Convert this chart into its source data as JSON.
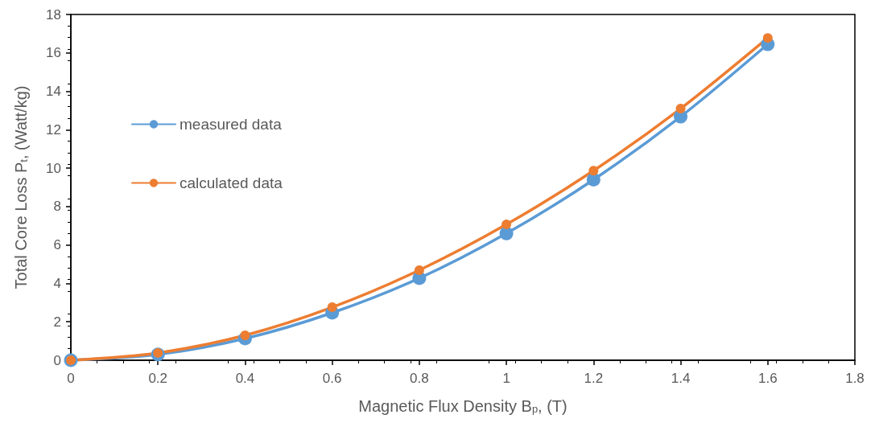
{
  "chart_data": {
    "type": "line",
    "xlabel": "Magnetic Flux Density B$_{p}$, (T)",
    "ylabel": "Total Core Loss P$_{t}$, (Watt/kg)",
    "x": [
      0,
      0.2,
      0.4,
      0.6,
      0.8,
      1.0,
      1.2,
      1.4,
      1.6
    ],
    "series": [
      {
        "name": "measured data",
        "color": "#5b9bd5",
        "values": [
          0,
          0.3,
          1.13,
          2.47,
          4.27,
          6.6,
          9.4,
          12.68,
          16.45
        ]
      },
      {
        "name": "calculated data",
        "color": "#ed7d31",
        "values": [
          0,
          0.38,
          1.3,
          2.76,
          4.69,
          7.07,
          9.87,
          13.1,
          16.78
        ]
      }
    ],
    "xlim": [
      0,
      1.8
    ],
    "xticks": [
      0,
      0.2,
      0.4,
      0.6,
      0.8,
      1,
      1.2,
      1.4,
      1.6,
      1.8
    ],
    "ylim": [
      0,
      18
    ],
    "yticks": [
      0,
      2,
      4,
      6,
      8,
      10,
      12,
      14,
      16,
      18
    ],
    "grid": false,
    "legend": "top left",
    "marker": "circle",
    "line_style": "solid"
  }
}
